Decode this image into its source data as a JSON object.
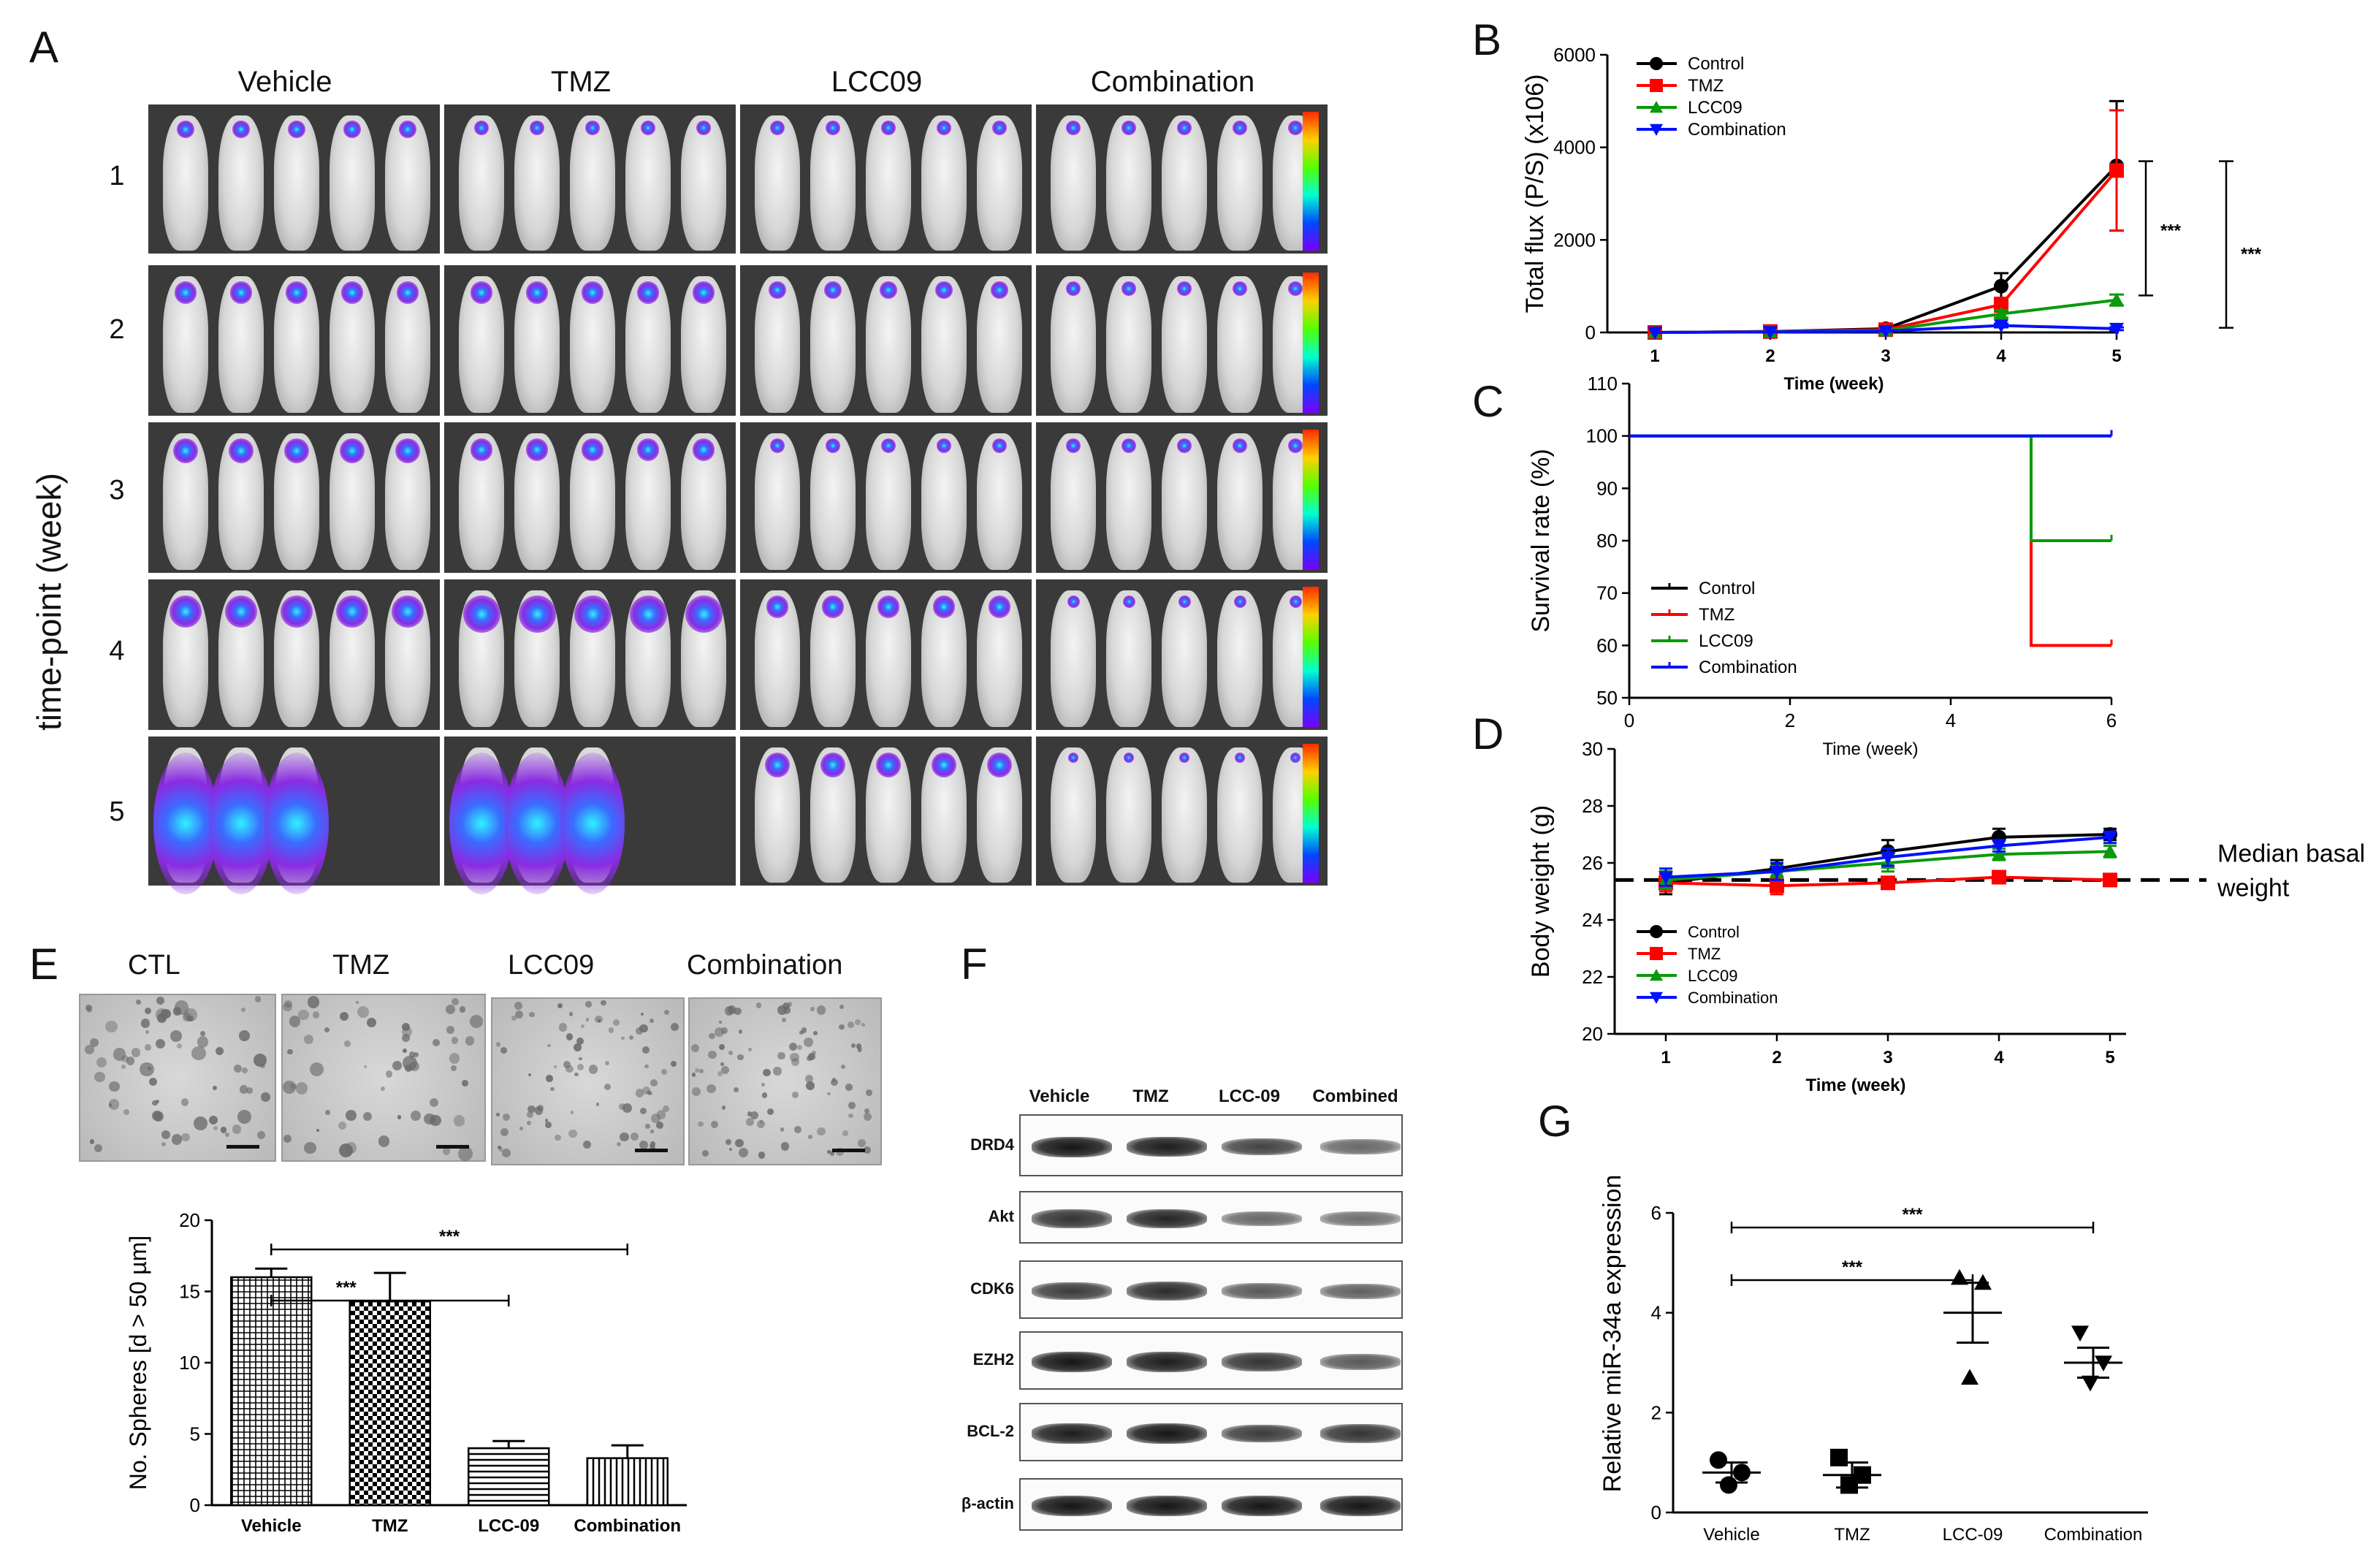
{
  "panelA": {
    "letter": "A",
    "groups": [
      "Vehicle",
      "TMZ",
      "LCC09",
      "Combination"
    ],
    "rows": [
      "1",
      "2",
      "3",
      "4",
      "5"
    ],
    "ylabel": "time-point (week)"
  },
  "panelB": {
    "letter": "B",
    "chart_data": {
      "type": "line",
      "ylabel": "Total flux (P/S) (x106)",
      "xlabel": "Time (week)",
      "x": [
        1,
        2,
        3,
        4,
        5
      ],
      "ylim": [
        0,
        6000
      ],
      "yticks": [
        "0",
        "2000",
        "4000",
        "6000"
      ],
      "xticks": [
        "1",
        "2",
        "3",
        "4",
        "5"
      ],
      "series": [
        {
          "name": "Control",
          "color": "#000000",
          "marker": "circle",
          "values": [
            0,
            20,
            80,
            1000,
            3600
          ],
          "err": [
            0,
            10,
            30,
            280,
            1400
          ]
        },
        {
          "name": "TMZ",
          "color": "#ff0000",
          "marker": "square",
          "values": [
            0,
            20,
            60,
            600,
            3500
          ],
          "err": [
            0,
            10,
            20,
            150,
            1300
          ]
        },
        {
          "name": "LCC09",
          "color": "#0a9a0a",
          "marker": "triangle-up",
          "values": [
            0,
            15,
            40,
            400,
            700
          ],
          "err": [
            0,
            5,
            10,
            80,
            120
          ]
        },
        {
          "name": "Combination",
          "color": "#0010ff",
          "marker": "triangle-down",
          "values": [
            0,
            10,
            30,
            150,
            80
          ],
          "err": [
            0,
            5,
            10,
            40,
            30
          ]
        }
      ],
      "significance": [
        "***",
        "***"
      ]
    }
  },
  "panelC": {
    "letter": "C",
    "chart_data": {
      "type": "line",
      "ylabel": "Survival rate (%)",
      "xlabel": "Time (week)",
      "ylim": [
        50,
        110
      ],
      "xlim": [
        0,
        6
      ],
      "yticks": [
        "50",
        "60",
        "70",
        "80",
        "90",
        "100",
        "110"
      ],
      "xticks": [
        "0",
        "2",
        "4",
        "6"
      ],
      "series": [
        {
          "name": "Control",
          "color": "#000000",
          "steps": [
            [
              0,
              100
            ],
            [
              6,
              100
            ]
          ]
        },
        {
          "name": "TMZ",
          "color": "#ff0000",
          "steps": [
            [
              0,
              100
            ],
            [
              5,
              100
            ],
            [
              5,
              60
            ],
            [
              6,
              60
            ]
          ]
        },
        {
          "name": "LCC09",
          "color": "#0a9a0a",
          "steps": [
            [
              0,
              100
            ],
            [
              5,
              100
            ],
            [
              5,
              80
            ],
            [
              6,
              80
            ]
          ]
        },
        {
          "name": "Combination",
          "color": "#0010ff",
          "steps": [
            [
              0,
              100
            ],
            [
              6,
              100
            ]
          ]
        }
      ]
    }
  },
  "panelD": {
    "letter": "D",
    "annotation": "Median basal weight",
    "annotation_line1": "Median basal",
    "annotation_line2": "weight",
    "chart_data": {
      "type": "line",
      "ylabel": "Body weight (g)",
      "xlabel": "Time (week)",
      "x": [
        1,
        2,
        3,
        4,
        5
      ],
      "ylim": [
        20,
        30
      ],
      "yticks": [
        "20",
        "22",
        "24",
        "26",
        "28",
        "30"
      ],
      "xticks": [
        "1",
        "2",
        "3",
        "4",
        "5"
      ],
      "baseline": 25.4,
      "series": [
        {
          "name": "Control",
          "color": "#000000",
          "marker": "circle",
          "values": [
            25.3,
            25.8,
            26.4,
            26.9,
            27.0
          ],
          "err": [
            0.4,
            0.3,
            0.4,
            0.3,
            0.2
          ]
        },
        {
          "name": "TMZ",
          "color": "#ff0000",
          "marker": "square",
          "values": [
            25.3,
            25.2,
            25.3,
            25.5,
            25.4
          ],
          "err": [
            0.3,
            0.3,
            0.2,
            0.2,
            0.2
          ]
        },
        {
          "name": "LCC09",
          "color": "#0a9a0a",
          "marker": "triangle-up",
          "values": [
            25.4,
            25.7,
            26.0,
            26.3,
            26.4
          ],
          "err": [
            0.3,
            0.2,
            0.3,
            0.2,
            0.2
          ]
        },
        {
          "name": "Combination",
          "color": "#0010ff",
          "marker": "triangle-down",
          "values": [
            25.5,
            25.7,
            26.2,
            26.6,
            26.9
          ],
          "err": [
            0.3,
            0.3,
            0.3,
            0.2,
            0.2
          ]
        }
      ]
    }
  },
  "panelE": {
    "letter": "E",
    "image_labels": [
      "CTL",
      "TMZ",
      "LCC09",
      "Combination"
    ],
    "chart_data": {
      "type": "bar",
      "ylabel": "No. Spheres [d > 50 µm]",
      "categories": [
        "Vehicle",
        "TMZ",
        "LCC-09",
        "Combination"
      ],
      "values": [
        16,
        14.3,
        4.0,
        3.3
      ],
      "err": [
        0.6,
        2.0,
        0.5,
        0.9
      ],
      "ylim": [
        0,
        20
      ],
      "yticks": [
        "0",
        "5",
        "10",
        "15",
        "20"
      ],
      "significance": [
        "***",
        "***"
      ]
    }
  },
  "panelF": {
    "letter": "F",
    "columns": [
      "Vehicle",
      "TMZ",
      "LCC-09",
      "Combined"
    ],
    "rows": [
      "DRD4",
      "Akt",
      "CDK6",
      "EZH2",
      "BCL-2",
      "β-actin"
    ]
  },
  "panelG": {
    "letter": "G",
    "chart_data": {
      "type": "scatter",
      "ylabel": "Relative miR-34a expression",
      "categories": [
        "Vehicle",
        "TMZ",
        "LCC-09",
        "Combination"
      ],
      "points": [
        [
          1.05,
          0.8,
          0.55
        ],
        [
          1.1,
          0.75,
          0.55
        ],
        [
          4.7,
          4.6,
          2.7
        ],
        [
          3.6,
          3.0,
          2.6
        ]
      ],
      "means": [
        0.8,
        0.75,
        4.0,
        3.0
      ],
      "sem": [
        0.2,
        0.25,
        0.6,
        0.3
      ],
      "ylim": [
        0,
        6
      ],
      "yticks": [
        "0",
        "2",
        "4",
        "6"
      ],
      "significance": [
        "***",
        "***"
      ]
    }
  }
}
